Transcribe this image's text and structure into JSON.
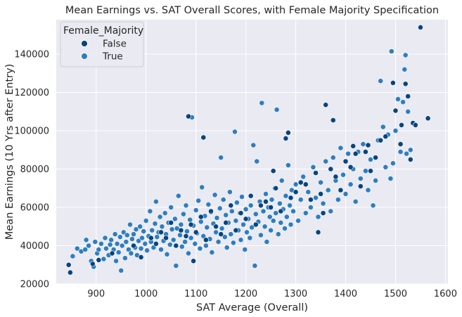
{
  "chart_data": {
    "type": "scatter",
    "title": "Mean Earnings vs. SAT Overall Scores, with Female Majority Specification",
    "xlabel": "SAT Average (Overall)",
    "ylabel": "Mean Earnings (10 Yrs after Entry)",
    "xlim": [
      820,
      1605
    ],
    "ylim": [
      20000,
      158000
    ],
    "xticks": [
      900,
      1000,
      1100,
      1200,
      1300,
      1400,
      1500,
      1600
    ],
    "yticks": [
      20000,
      40000,
      60000,
      80000,
      100000,
      120000,
      140000
    ],
    "grid": true,
    "legend": {
      "title": "Female_Majority",
      "position": "top-left",
      "entries": [
        {
          "label": "False",
          "color": "#08457e"
        },
        {
          "label": "True",
          "color": "#2f7ec0"
        }
      ]
    },
    "background_color": "#eaeaf2",
    "series": [
      {
        "name": "False",
        "color": "#08457e",
        "points": [
          [
            845,
            30000
          ],
          [
            848,
            26000
          ],
          [
            893,
            30500
          ],
          [
            905,
            32500
          ],
          [
            932,
            36000
          ],
          [
            975,
            40000
          ],
          [
            990,
            34000
          ],
          [
            1010,
            44000
          ],
          [
            1020,
            41000
          ],
          [
            1030,
            47000
          ],
          [
            1040,
            44000
          ],
          [
            1050,
            52000
          ],
          [
            1060,
            40000
          ],
          [
            1070,
            48000
          ],
          [
            1080,
            45000
          ],
          [
            1085,
            107500
          ],
          [
            1090,
            51000
          ],
          [
            1095,
            32000
          ],
          [
            1100,
            47000
          ],
          [
            1110,
            55000
          ],
          [
            1115,
            96500
          ],
          [
            1120,
            43000
          ],
          [
            1130,
            58000
          ],
          [
            1140,
            50000
          ],
          [
            1150,
            46000
          ],
          [
            1160,
            52000
          ],
          [
            1170,
            61000
          ],
          [
            1180,
            48000
          ],
          [
            1190,
            57000
          ],
          [
            1200,
            54000
          ],
          [
            1210,
            66000
          ],
          [
            1220,
            51000
          ],
          [
            1230,
            61000
          ],
          [
            1240,
            63000
          ],
          [
            1250,
            60000
          ],
          [
            1255,
            79000
          ],
          [
            1260,
            70000
          ],
          [
            1270,
            58000
          ],
          [
            1280,
            96000
          ],
          [
            1285,
            99000
          ],
          [
            1290,
            65000
          ],
          [
            1300,
            68000
          ],
          [
            1310,
            73000
          ],
          [
            1320,
            72000
          ],
          [
            1330,
            64000
          ],
          [
            1340,
            78000
          ],
          [
            1345,
            47000
          ],
          [
            1350,
            67000
          ],
          [
            1355,
            57000
          ],
          [
            1360,
            113500
          ],
          [
            1370,
            80000
          ],
          [
            1375,
            105500
          ],
          [
            1380,
            76000
          ],
          [
            1390,
            69000
          ],
          [
            1400,
            84000
          ],
          [
            1410,
            81000
          ],
          [
            1415,
            92000
          ],
          [
            1420,
            88000
          ],
          [
            1430,
            71000
          ],
          [
            1440,
            89000
          ],
          [
            1445,
            92500
          ],
          [
            1450,
            79000
          ],
          [
            1460,
            86000
          ],
          [
            1470,
            95000
          ],
          [
            1480,
            97000
          ],
          [
            1495,
            125000
          ],
          [
            1500,
            110500
          ],
          [
            1510,
            93000
          ],
          [
            1512,
            103000
          ],
          [
            1520,
            124500
          ],
          [
            1525,
            118000
          ],
          [
            1530,
            85000
          ],
          [
            1535,
            104000
          ],
          [
            1540,
            103000
          ],
          [
            1550,
            154000
          ],
          [
            1565,
            106500
          ]
        ]
      },
      {
        "name": "True",
        "color": "#2f7ec0",
        "points": [
          [
            853,
            34500
          ],
          [
            862,
            38500
          ],
          [
            870,
            37000
          ],
          [
            878,
            38000
          ],
          [
            880,
            43000
          ],
          [
            885,
            40000
          ],
          [
            890,
            32000
          ],
          [
            895,
            29000
          ],
          [
            898,
            42000
          ],
          [
            902,
            36000
          ],
          [
            905,
            38000
          ],
          [
            910,
            41000
          ],
          [
            915,
            33000
          ],
          [
            918,
            44000
          ],
          [
            920,
            38500
          ],
          [
            925,
            35000
          ],
          [
            928,
            40500
          ],
          [
            930,
            43000
          ],
          [
            935,
            38000
          ],
          [
            938,
            46000
          ],
          [
            940,
            32000
          ],
          [
            942,
            41000
          ],
          [
            945,
            36500
          ],
          [
            948,
            44500
          ],
          [
            950,
            27000
          ],
          [
            952,
            40000
          ],
          [
            955,
            47000
          ],
          [
            958,
            33500
          ],
          [
            960,
            42000
          ],
          [
            962,
            45500
          ],
          [
            965,
            38000
          ],
          [
            968,
            51000
          ],
          [
            970,
            36000
          ],
          [
            972,
            43500
          ],
          [
            975,
            46000
          ],
          [
            978,
            39000
          ],
          [
            980,
            48500
          ],
          [
            982,
            35000
          ],
          [
            985,
            42500
          ],
          [
            988,
            50000
          ],
          [
            990,
            38500
          ],
          [
            992,
            44000
          ],
          [
            995,
            47500
          ],
          [
            998,
            41000
          ],
          [
            1000,
            53000
          ],
          [
            1002,
            37500
          ],
          [
            1005,
            45000
          ],
          [
            1008,
            58000
          ],
          [
            1010,
            42000
          ],
          [
            1012,
            48000
          ],
          [
            1015,
            39000
          ],
          [
            1018,
            51500
          ],
          [
            1020,
            63000
          ],
          [
            1022,
            44500
          ],
          [
            1025,
            47000
          ],
          [
            1028,
            55000
          ],
          [
            1030,
            38000
          ],
          [
            1032,
            50000
          ],
          [
            1035,
            42500
          ],
          [
            1038,
            57000
          ],
          [
            1040,
            46000
          ],
          [
            1042,
            35500
          ],
          [
            1045,
            52000
          ],
          [
            1048,
            40500
          ],
          [
            1050,
            60000
          ],
          [
            1052,
            48500
          ],
          [
            1055,
            43000
          ],
          [
            1058,
            54000
          ],
          [
            1060,
            29500
          ],
          [
            1062,
            49000
          ],
          [
            1065,
            66000
          ],
          [
            1068,
            45500
          ],
          [
            1070,
            51000
          ],
          [
            1072,
            39500
          ],
          [
            1075,
            56500
          ],
          [
            1078,
            42000
          ],
          [
            1080,
            61000
          ],
          [
            1082,
            47500
          ],
          [
            1085,
            36000
          ],
          [
            1088,
            53500
          ],
          [
            1090,
            44000
          ],
          [
            1092,
            107000
          ],
          [
            1095,
            50500
          ],
          [
            1098,
            41000
          ],
          [
            1100,
            58500
          ],
          [
            1102,
            46500
          ],
          [
            1105,
            63500
          ],
          [
            1108,
            38500
          ],
          [
            1110,
            52500
          ],
          [
            1112,
            70500
          ],
          [
            1115,
            45000
          ],
          [
            1118,
            55500
          ],
          [
            1120,
            40000
          ],
          [
            1122,
            49500
          ],
          [
            1125,
            61500
          ],
          [
            1128,
            43500
          ],
          [
            1130,
            57500
          ],
          [
            1132,
            36500
          ],
          [
            1135,
            51500
          ],
          [
            1138,
            66500
          ],
          [
            1140,
            47000
          ],
          [
            1142,
            54500
          ],
          [
            1145,
            42000
          ],
          [
            1148,
            59500
          ],
          [
            1150,
            86000
          ],
          [
            1152,
            49000
          ],
          [
            1155,
            64000
          ],
          [
            1158,
            44500
          ],
          [
            1160,
            56000
          ],
          [
            1162,
            39000
          ],
          [
            1165,
            52000
          ],
          [
            1168,
            68000
          ],
          [
            1170,
            46000
          ],
          [
            1172,
            58000
          ],
          [
            1175,
            41500
          ],
          [
            1178,
            99500
          ],
          [
            1180,
            53000
          ],
          [
            1182,
            62500
          ],
          [
            1185,
            48000
          ],
          [
            1188,
            57000
          ],
          [
            1190,
            43000
          ],
          [
            1192,
            65500
          ],
          [
            1195,
            51000
          ],
          [
            1198,
            38000
          ],
          [
            1200,
            59000
          ],
          [
            1202,
            47000
          ],
          [
            1205,
            54000
          ],
          [
            1208,
            44000
          ],
          [
            1210,
            61000
          ],
          [
            1212,
            49500
          ],
          [
            1215,
            92500
          ],
          [
            1218,
            29500
          ],
          [
            1220,
            56500
          ],
          [
            1222,
            84000
          ],
          [
            1225,
            52500
          ],
          [
            1228,
            63000
          ],
          [
            1230,
            45500
          ],
          [
            1232,
            114500
          ],
          [
            1235,
            58000
          ],
          [
            1238,
            50000
          ],
          [
            1240,
            67000
          ],
          [
            1242,
            42000
          ],
          [
            1245,
            60000
          ],
          [
            1248,
            55000
          ],
          [
            1250,
            48000
          ],
          [
            1252,
            64000
          ],
          [
            1255,
            53000
          ],
          [
            1258,
            70000
          ],
          [
            1260,
            57000
          ],
          [
            1262,
            111000
          ],
          [
            1265,
            46000
          ],
          [
            1268,
            62000
          ],
          [
            1270,
            52000
          ],
          [
            1272,
            74000
          ],
          [
            1275,
            59000
          ],
          [
            1278,
            49000
          ],
          [
            1280,
            66000
          ],
          [
            1282,
            55000
          ],
          [
            1285,
            82000
          ],
          [
            1288,
            61000
          ],
          [
            1290,
            51000
          ],
          [
            1292,
            69000
          ],
          [
            1295,
            58000
          ],
          [
            1300,
            72000
          ],
          [
            1305,
            53000
          ],
          [
            1310,
            64000
          ],
          [
            1315,
            76000
          ],
          [
            1320,
            57000
          ],
          [
            1325,
            68000
          ],
          [
            1330,
            60000
          ],
          [
            1335,
            81000
          ],
          [
            1340,
            65000
          ],
          [
            1345,
            55000
          ],
          [
            1350,
            73000
          ],
          [
            1355,
            62000
          ],
          [
            1360,
            84000
          ],
          [
            1365,
            69000
          ],
          [
            1370,
            58000
          ],
          [
            1375,
            86000
          ],
          [
            1380,
            74000
          ],
          [
            1385,
            64000
          ],
          [
            1390,
            91000
          ],
          [
            1395,
            77000
          ],
          [
            1400,
            67000
          ],
          [
            1405,
            88000
          ],
          [
            1410,
            72000
          ],
          [
            1415,
            80000
          ],
          [
            1420,
            63000
          ],
          [
            1425,
            89000
          ],
          [
            1430,
            75000
          ],
          [
            1435,
            93000
          ],
          [
            1440,
            79000
          ],
          [
            1445,
            69000
          ],
          [
            1450,
            85000
          ],
          [
            1455,
            61000
          ],
          [
            1460,
            74000
          ],
          [
            1465,
            95000
          ],
          [
            1470,
            126000
          ],
          [
            1475,
            102000
          ],
          [
            1480,
            81000
          ],
          [
            1485,
            98000
          ],
          [
            1490,
            75000
          ],
          [
            1492,
            141500
          ],
          [
            1495,
            83000
          ],
          [
            1500,
            100000
          ],
          [
            1505,
            116500
          ],
          [
            1510,
            89000
          ],
          [
            1515,
            115000
          ],
          [
            1518,
            132000
          ],
          [
            1520,
            139500
          ],
          [
            1522,
            88000
          ],
          [
            1525,
            110000
          ],
          [
            1530,
            90000
          ]
        ]
      }
    ]
  }
}
